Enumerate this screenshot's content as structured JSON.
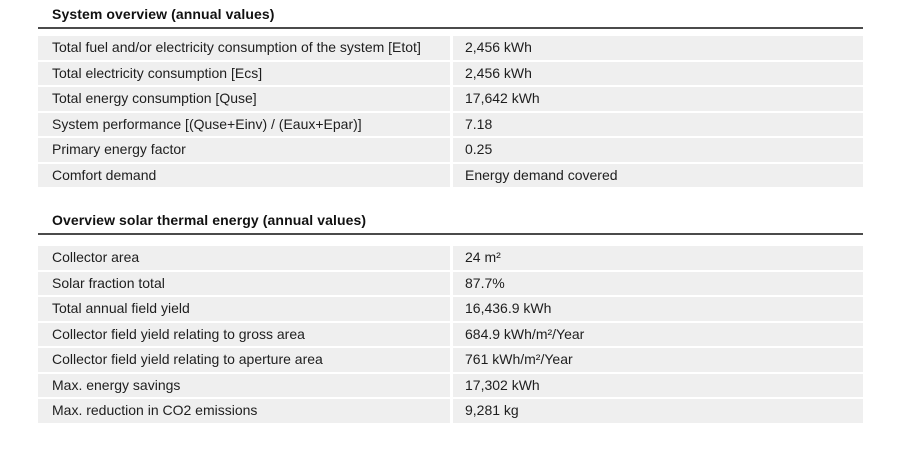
{
  "colors": {
    "row_background": "#efefef",
    "header_rule": "#4b4b4b",
    "text": "#1e1e1e"
  },
  "sections": [
    {
      "title": "System overview (annual values)",
      "rows": [
        {
          "label": "Total fuel and/or electricity consumption of the system [Etot]",
          "value": "2,456 kWh"
        },
        {
          "label": "Total electricity consumption [Ecs]",
          "value": "2,456 kWh"
        },
        {
          "label": "Total energy consumption [Quse]",
          "value": "17,642 kWh"
        },
        {
          "label": "System performance [(Quse+Einv) / (Eaux+Epar)]",
          "value": "7.18"
        },
        {
          "label": "Primary energy factor",
          "value": "0.25"
        },
        {
          "label": "Comfort demand",
          "value": "Energy demand covered"
        }
      ]
    },
    {
      "title": "Overview solar thermal energy (annual values)",
      "rows": [
        {
          "label": "Collector area",
          "value": "24 m²"
        },
        {
          "label": "Solar fraction total",
          "value": "87.7%"
        },
        {
          "label": "Total annual field yield",
          "value": "16,436.9 kWh"
        },
        {
          "label": "Collector field yield relating to gross area",
          "value": "684.9 kWh/m²/Year"
        },
        {
          "label": "Collector field yield relating to aperture area",
          "value": "761 kWh/m²/Year"
        },
        {
          "label": "Max. energy savings",
          "value": "17,302 kWh"
        },
        {
          "label": "Max. reduction in CO2 emissions",
          "value": "9,281 kg"
        }
      ]
    }
  ]
}
